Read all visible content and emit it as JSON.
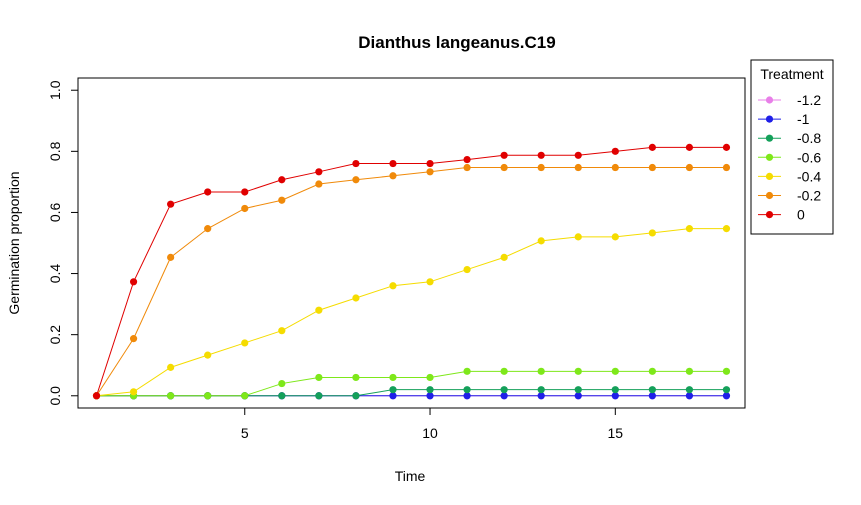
{
  "chart_data": {
    "type": "line",
    "title": "Dianthus langeanus.C19",
    "xlabel": "Time",
    "ylabel": "Germination proportion",
    "xlim": [
      0.5,
      18.5
    ],
    "ylim": [
      -0.04,
      1.04
    ],
    "x_ticks": [
      5,
      10,
      15
    ],
    "y_ticks": [
      0.0,
      0.2,
      0.4,
      0.6,
      0.8,
      1.0
    ],
    "x_tick_labels": [
      "5",
      "10",
      "15"
    ],
    "y_tick_labels": [
      "0.0",
      "0.2",
      "0.4",
      "0.6",
      "0.8",
      "1.0"
    ],
    "grid": false,
    "legend": {
      "title": "Treatment",
      "placement": "right"
    },
    "x": [
      1,
      2,
      3,
      4,
      5,
      6,
      7,
      8,
      9,
      10,
      11,
      12,
      13,
      14,
      15,
      16,
      17,
      18
    ],
    "series": [
      {
        "name": "-1.2",
        "color": "#e87fe8",
        "values": [
          0,
          0,
          0,
          0,
          0,
          0,
          0,
          0,
          0,
          0,
          0,
          0,
          0,
          0,
          0,
          0,
          0,
          0
        ]
      },
      {
        "name": "-1",
        "color": "#1f1fe8",
        "values": [
          0,
          0,
          0,
          0,
          0,
          0,
          0,
          0,
          0,
          0,
          0,
          0,
          0,
          0,
          0,
          0,
          0,
          0
        ]
      },
      {
        "name": "-0.8",
        "color": "#14a05a",
        "values": [
          0,
          0,
          0,
          0,
          0,
          0,
          0,
          0,
          0.02,
          0.02,
          0.02,
          0.02,
          0.02,
          0.02,
          0.02,
          0.02,
          0.02,
          0.02
        ]
      },
      {
        "name": "-0.6",
        "color": "#7ee81a",
        "values": [
          0,
          0,
          0,
          0,
          0,
          0.04,
          0.06,
          0.06,
          0.06,
          0.06,
          0.08,
          0.08,
          0.08,
          0.08,
          0.08,
          0.08,
          0.08,
          0.08
        ]
      },
      {
        "name": "-0.4",
        "color": "#f5dc00",
        "values": [
          0,
          0.013,
          0.093,
          0.133,
          0.173,
          0.213,
          0.28,
          0.32,
          0.36,
          0.373,
          0.413,
          0.453,
          0.507,
          0.52,
          0.52,
          0.533,
          0.547,
          0.547
        ]
      },
      {
        "name": "-0.2",
        "color": "#f08a0a",
        "values": [
          0,
          0.187,
          0.453,
          0.547,
          0.613,
          0.64,
          0.693,
          0.707,
          0.72,
          0.733,
          0.747,
          0.747,
          0.747,
          0.747,
          0.747,
          0.747,
          0.747,
          0.747
        ]
      },
      {
        "name": "0",
        "color": "#e00000",
        "values": [
          0,
          0.373,
          0.627,
          0.667,
          0.667,
          0.707,
          0.733,
          0.76,
          0.76,
          0.76,
          0.773,
          0.787,
          0.787,
          0.787,
          0.8,
          0.813,
          0.813,
          0.813
        ]
      }
    ]
  }
}
